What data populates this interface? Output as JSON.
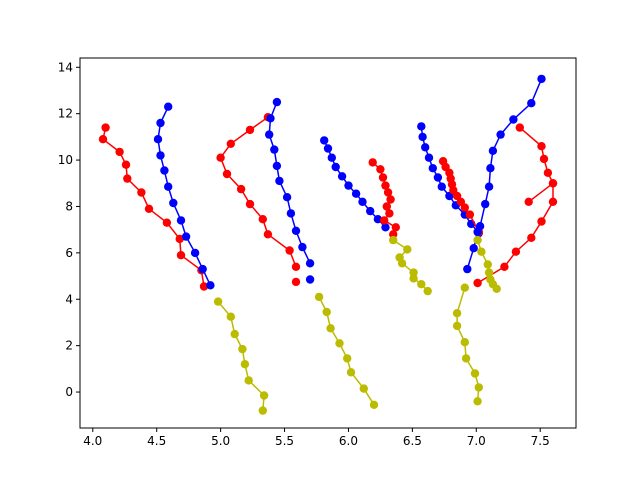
{
  "chart_data": {
    "type": "line",
    "title": "",
    "xlabel": "",
    "ylabel": "",
    "xlim": [
      3.9,
      7.78
    ],
    "ylim": [
      -1.55,
      14.4
    ],
    "xticks": [
      4.0,
      4.5,
      5.0,
      5.5,
      6.0,
      6.5,
      7.0,
      7.5
    ],
    "xtick_labels": [
      "4.0",
      "4.5",
      "5.0",
      "5.5",
      "6.0",
      "6.5",
      "7.0",
      "7.5"
    ],
    "yticks": [
      0,
      2,
      4,
      6,
      8,
      10,
      12,
      14
    ],
    "ytick_labels": [
      "0",
      "2",
      "4",
      "6",
      "8",
      "10",
      "12",
      "14"
    ],
    "grid": false,
    "legend": "none",
    "marker": "circle",
    "series": [
      {
        "color": "#ff0000",
        "x": [
          4.1,
          4.08,
          4.21,
          4.26,
          4.27,
          4.38,
          4.44,
          4.58,
          4.68,
          4.69,
          4.85,
          4.87
        ],
        "y": [
          11.4,
          10.9,
          10.35,
          9.8,
          9.2,
          8.6,
          7.9,
          7.3,
          6.6,
          5.9,
          5.25,
          4.55
        ]
      },
      {
        "color": "#0000ff",
        "x": [
          4.59,
          4.53,
          4.51,
          4.53,
          4.56,
          4.59,
          4.63,
          4.69,
          4.73,
          4.8,
          4.86,
          4.92
        ],
        "y": [
          12.3,
          11.6,
          10.9,
          10.2,
          9.55,
          8.85,
          8.15,
          7.4,
          6.7,
          6.0,
          5.3,
          4.6
        ]
      },
      {
        "color": "#ff0000",
        "x": [
          5.37,
          5.23,
          5.08,
          5.0,
          5.05,
          5.16,
          5.23,
          5.33,
          5.37,
          5.54,
          5.59
        ],
        "y": [
          11.85,
          11.3,
          10.7,
          10.1,
          9.4,
          8.75,
          8.1,
          7.45,
          6.8,
          6.1,
          5.4
        ]
      },
      {
        "color": "#0000ff",
        "x": [
          5.44,
          5.39,
          5.38,
          5.42,
          5.44,
          5.46,
          5.52,
          5.55,
          5.59,
          5.64,
          5.7
        ],
        "y": [
          12.5,
          11.8,
          11.1,
          10.45,
          9.75,
          9.1,
          8.4,
          7.7,
          6.95,
          6.25,
          5.55
        ]
      },
      {
        "color": "#ff0000",
        "x": [
          5.59
        ],
        "y": [
          4.75
        ]
      },
      {
        "color": "#0000ff",
        "x": [
          5.7
        ],
        "y": [
          4.85
        ]
      },
      {
        "color": "#bbbb00",
        "x": [
          4.98,
          5.08,
          5.11,
          5.17,
          5.19,
          5.22,
          5.34,
          5.33
        ],
        "y": [
          3.9,
          3.25,
          2.5,
          1.85,
          1.2,
          0.5,
          -0.15,
          -0.8
        ]
      },
      {
        "color": "#bbbb00",
        "x": [
          5.77,
          5.83,
          5.86,
          5.93,
          5.99,
          6.02,
          6.12,
          6.2
        ],
        "y": [
          4.1,
          3.45,
          2.75,
          2.1,
          1.45,
          0.85,
          0.15,
          -0.55
        ]
      },
      {
        "color": "#0000ff",
        "x": [
          5.81,
          5.84,
          5.87,
          5.9,
          5.95,
          6.0,
          6.06,
          6.11,
          6.17,
          6.23,
          6.29
        ],
        "y": [
          10.85,
          10.5,
          10.1,
          9.7,
          9.3,
          8.9,
          8.55,
          8.2,
          7.8,
          7.45,
          7.1
        ]
      },
      {
        "color": "#ff0000",
        "x": [
          6.19,
          6.25,
          6.27,
          6.29,
          6.31,
          6.33,
          6.3,
          6.32,
          6.28,
          6.37,
          6.35
        ],
        "y": [
          9.9,
          9.6,
          9.25,
          8.9,
          8.6,
          8.3,
          8.0,
          7.7,
          7.4,
          7.1,
          6.8
        ]
      },
      {
        "color": "#bbbb00",
        "x": [
          6.35,
          6.46,
          6.4,
          6.42,
          6.51,
          6.51,
          6.57,
          6.62
        ],
        "y": [
          6.55,
          6.15,
          5.8,
          5.55,
          5.15,
          4.9,
          4.65,
          4.35
        ]
      },
      {
        "color": "#0000ff",
        "x": [
          6.57,
          6.58,
          6.6,
          6.63,
          6.66,
          6.7,
          6.73,
          6.79,
          6.84,
          6.91,
          6.96,
          7.02
        ],
        "y": [
          11.45,
          11.0,
          10.55,
          10.1,
          9.65,
          9.25,
          8.85,
          8.45,
          8.05,
          7.65,
          7.25,
          6.85
        ]
      },
      {
        "color": "#ff0000",
        "x": [
          6.74,
          6.76,
          6.79,
          6.8,
          6.81,
          6.82,
          6.85,
          6.88,
          6.91,
          6.95,
          7.02
        ],
        "y": [
          9.95,
          9.7,
          9.45,
          9.2,
          8.95,
          8.7,
          8.45,
          8.2,
          7.95,
          7.65,
          6.9
        ]
      },
      {
        "color": "#0000ff",
        "x": [
          6.93,
          6.98,
          7.01,
          7.03,
          7.07,
          7.1,
          7.11,
          7.13,
          7.19,
          7.29,
          7.43,
          7.51
        ],
        "y": [
          5.3,
          6.2,
          6.9,
          7.15,
          8.1,
          8.85,
          9.65,
          10.4,
          11.1,
          11.75,
          12.45,
          13.5
        ]
      },
      {
        "color": "#ff0000",
        "x": [
          7.01,
          7.22,
          7.31,
          7.43,
          7.51,
          7.6,
          7.6,
          7.56,
          7.53,
          7.51,
          7.34
        ],
        "y": [
          4.7,
          5.4,
          6.05,
          6.65,
          7.35,
          8.2,
          9.0,
          9.45,
          10.05,
          10.6,
          11.4
        ]
      },
      {
        "color": "#ff0000",
        "x": [
          7.6,
          7.41
        ],
        "y": [
          9.0,
          8.2
        ]
      },
      {
        "color": "#bbbb00",
        "x": [
          7.01,
          7.04,
          7.09,
          7.1,
          7.11,
          7.13,
          7.16
        ],
        "y": [
          6.55,
          6.05,
          5.5,
          5.15,
          4.85,
          4.65,
          4.45
        ]
      },
      {
        "color": "#bbbb00",
        "x": [
          6.91,
          6.85,
          6.85,
          6.91,
          6.92,
          6.99,
          7.02,
          7.01
        ],
        "y": [
          4.5,
          3.4,
          2.85,
          2.15,
          1.45,
          0.8,
          0.2,
          -0.4
        ]
      }
    ]
  }
}
